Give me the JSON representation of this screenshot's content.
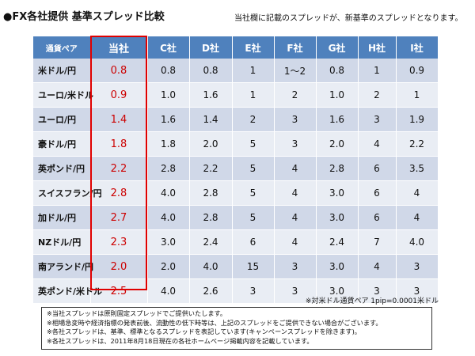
{
  "title": "●FX各社提供 基準スプレッド比較",
  "note": "当社欄に記載のスプレッドが、新基準のスプレッドとなります。",
  "table": {
    "headers": [
      "通貨ペア",
      "当社",
      "C社",
      "D社",
      "E社",
      "F社",
      "G社",
      "H社",
      "I社"
    ],
    "rows": [
      [
        "米ドル/円",
        "0.8",
        "0.8",
        "0.8",
        "1",
        "1〜2",
        "0.8",
        "1",
        "0.9"
      ],
      [
        "ユーロ/米ドル",
        "0.9",
        "1.0",
        "1.6",
        "1",
        "2",
        "1.0",
        "2",
        "1"
      ],
      [
        "ユーロ/円",
        "1.4",
        "1.6",
        "1.4",
        "2",
        "3",
        "1.6",
        "3",
        "1.9"
      ],
      [
        "豪ドル/円",
        "1.8",
        "1.8",
        "2.0",
        "5",
        "3",
        "2.0",
        "4",
        "2.2"
      ],
      [
        "英ポンド/円",
        "2.2",
        "2.8",
        "2.2",
        "5",
        "4",
        "2.8",
        "6",
        "3.5"
      ],
      [
        "スイスフラン/円",
        "2.8",
        "4.0",
        "2.8",
        "5",
        "4",
        "3.0",
        "6",
        "4"
      ],
      [
        "加ドル/円",
        "2.7",
        "4.0",
        "2.8",
        "5",
        "4",
        "3.0",
        "6",
        "4"
      ],
      [
        "NZドル/円",
        "2.3",
        "3.0",
        "2.4",
        "6",
        "4",
        "2.4",
        "7",
        "4.0"
      ],
      [
        "南アランド/円",
        "2.0",
        "2.0",
        "4.0",
        "15",
        "3",
        "3.0",
        "4",
        "3"
      ],
      [
        "英ポンド/米ドル",
        "2.5",
        "4.0",
        "2.6",
        "3",
        "3",
        "3.0",
        "3",
        "3"
      ]
    ]
  },
  "footnote": "※対米ドル通貨ペア 1pip=0.0001米ドル",
  "disclaimer": [
    "※当社スプレッドは原則固定スプレッドでご提供いたします。",
    "※相場急変時や経済指標の発表前後、流動性の低下時等は、上記のスプレッドをご提供できない場合がございます。",
    "※各社スプレッドは、基準、標準となるスプレッドを表記しています(キャンペーンスプレッドを除きます)。",
    "※各社スプレッドは、2011年8月18日現在の各社ホームページ掲載内容を記載しています。"
  ],
  "colors": {
    "header_bg": "#4f81bd",
    "row_odd": "#d0d8e8",
    "row_even": "#e9edf4",
    "highlight": "#e00000",
    "ours_text": "#cc0000"
  }
}
